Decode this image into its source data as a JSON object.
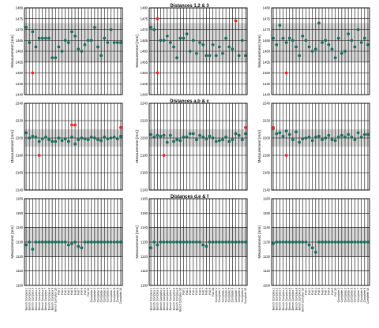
{
  "colors": {
    "point": "#1b6b5e",
    "outlier": "#ff1f1f",
    "band": "#d9d9d9",
    "axis": "#000000"
  },
  "section_titles": [
    "Distances 1,2 & 3",
    "Distances a,b & c",
    "Distances d,e & f"
  ],
  "ylabel": "Measurement [mm]",
  "x_tick_labels": [
    "Bench Complex 1",
    "Bench Complex 2",
    "Bench Complex 3",
    "Bench Complex 4",
    "Bench Complex 5",
    "Bench Complex 6",
    "Bench Complex 7",
    "Bench Complex 8",
    "Bench Complex 9",
    "Bench Complex 10",
    "Full 1",
    "Full 2",
    "Full 3",
    "Full 4",
    "Full 5",
    "Full 6",
    "Full 7",
    "Full 8",
    "Full 9",
    "Full 10",
    "Complete 1",
    "Complete 2",
    "Complete 3",
    "Complete 4",
    "Complete 5",
    "Complete 6",
    "Complete 7",
    "Complete 8",
    "Complete 9",
    "Complete 10"
  ],
  "chart_data": [
    {
      "type": "scatter",
      "title": "Distances 1,2 & 3",
      "ylabel": "Measurement [mm]",
      "ylim": [
        1440,
        1480
      ],
      "yticks": [
        1440,
        1445,
        1450,
        1455,
        1460,
        1465,
        1470,
        1475,
        1480
      ],
      "band": [
        1455,
        1473
      ],
      "series": [
        {
          "values": [
            1471,
            1464,
            1469,
            1462,
            1466,
            1466,
            1466,
            1466,
            1457,
            1457,
            1462,
            1460,
            1465,
            1464,
            1469,
            1467,
            1461,
            1460,
            1463,
            1465,
            1465,
            1471,
            1462,
            1458,
            1466,
            1464,
            1470,
            1464,
            1464,
            1464
          ]
        },
        {
          "values": [
            1471,
            1470,
            1475,
            1465,
            1465,
            1467,
            1464,
            1462,
            1457,
            1466,
            1466,
            1468,
            1460,
            1465,
            1459,
            1464,
            1463,
            1458,
            1458,
            1463,
            1458,
            1462,
            1459,
            1466,
            1462,
            1461,
            1474,
            1458,
            1465,
            1458
          ]
        },
        {
          "values": [
            1466,
            1463,
            1472,
            1466,
            1464,
            1466,
            1465,
            1462,
            1458,
            1467,
            1465,
            1462,
            1460,
            1461,
            1473,
            1464,
            1465,
            1463,
            1461,
            1457,
            1466,
            1459,
            1460,
            1468,
            1465,
            1462,
            1470,
            1464,
            1466,
            1463
          ]
        }
      ],
      "outliers": [
        [
          {
            "x": 3,
            "y": 1450
          }
        ],
        [
          {
            "x": 3,
            "y": 1475
          },
          {
            "x": 3,
            "y": 1450
          },
          {
            "x": 27,
            "y": 1474
          }
        ],
        [
          {
            "x": 5,
            "y": 1450
          }
        ]
      ]
    },
    {
      "type": "scatter",
      "title": "Distances a,b & c",
      "ylabel": "Measurement [mm]",
      "ylim": [
        2140,
        2240
      ],
      "yticks": [
        2140,
        2160,
        2180,
        2200,
        2220,
        2240
      ],
      "band": [
        2190,
        2210
      ],
      "series": [
        {
          "values": [
            2206,
            2200,
            2202,
            2201,
            2196,
            2199,
            2201,
            2198,
            2196,
            2196,
            2200,
            2197,
            2199,
            2196,
            2201,
            2193,
            2198,
            2200,
            2199,
            2198,
            2201,
            2200,
            2198,
            2197,
            2201,
            2199,
            2200,
            2201,
            2199,
            2202
          ]
        },
        {
          "values": [
            2204,
            2201,
            2203,
            2202,
            2203,
            2195,
            2203,
            2196,
            2198,
            2197,
            2201,
            2201,
            2205,
            2205,
            2198,
            2203,
            2201,
            2199,
            2202,
            2200,
            2196,
            2197,
            2198,
            2201,
            2196,
            2198,
            2205,
            2203,
            2198,
            2205
          ]
        },
        {
          "values": [
            2211,
            2205,
            2206,
            2202,
            2208,
            2204,
            2198,
            2207,
            2195,
            2199,
            2200,
            2201,
            2197,
            2201,
            2202,
            2198,
            2200,
            2203,
            2198,
            2197,
            2201,
            2203,
            2201,
            2204,
            2201,
            2198,
            2206,
            2201,
            2204,
            2204
          ]
        }
      ],
      "outliers": [
        [
          {
            "x": 5,
            "y": 2180
          },
          {
            "x": 15,
            "y": 2215
          },
          {
            "x": 16,
            "y": 2215
          },
          {
            "x": 30,
            "y": 2212
          }
        ],
        [
          {
            "x": 5,
            "y": 2180
          },
          {
            "x": 30,
            "y": 2212
          }
        ],
        [
          {
            "x": 1,
            "y": 2212
          },
          {
            "x": 5,
            "y": 2180
          }
        ]
      ]
    },
    {
      "type": "scatter",
      "title": "Distances d,e & f",
      "ylabel": "Measurement [mm]",
      "ylim": [
        1100,
        1160
      ],
      "yticks": [
        1100,
        1110,
        1120,
        1130,
        1140,
        1150,
        1160
      ],
      "band": [
        1120,
        1140
      ],
      "series": [
        {
          "values": [
            1128,
            1130,
            1125,
            1130,
            1130,
            1130,
            1130,
            1130,
            1130,
            1130,
            1130,
            1130,
            1130,
            1128,
            1129,
            1130,
            1127,
            1126,
            1130,
            1130,
            1130,
            1130,
            1130,
            1130,
            1130,
            1130,
            1130,
            1130,
            1130,
            1130
          ]
        },
        {
          "values": [
            1126,
            1130,
            1128,
            1130,
            1130,
            1130,
            1130,
            1130,
            1130,
            1130,
            1130,
            1130,
            1130,
            1130,
            1130,
            1130,
            1128,
            1127,
            1130,
            1130,
            1130,
            1130,
            1130,
            1130,
            1130,
            1130,
            1130,
            1130,
            1130,
            1130
          ]
        },
        {
          "values": [
            1129,
            1130,
            1130,
            1130,
            1130,
            1130,
            1130,
            1130,
            1130,
            1130,
            1130,
            1128,
            1126,
            1123,
            1130,
            1130,
            1130,
            1130,
            1130,
            1130,
            1130,
            1130,
            1130,
            1130,
            1130,
            1130,
            1130,
            1130,
            1130,
            1130
          ]
        }
      ],
      "outliers": [
        [],
        [],
        []
      ]
    }
  ]
}
